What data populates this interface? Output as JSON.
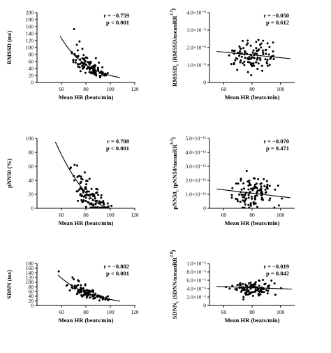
{
  "chart_data": [
    {
      "type": "scatter",
      "id": "p1",
      "xlabel": "Mean HR (beats/min)",
      "ylabel": "RMSSD (ms)",
      "xlim": [
        40,
        120
      ],
      "ylim": [
        0,
        200
      ],
      "xticks": [
        60,
        80,
        100,
        120
      ],
      "yticks": [
        0,
        20,
        40,
        60,
        80,
        100,
        120,
        140,
        160,
        180,
        200
      ],
      "ytick_labels": [
        "0",
        "20",
        "40",
        "60",
        "80",
        "100",
        "120",
        "140",
        "160",
        "180",
        "200"
      ],
      "stat_r": "r = −0.759",
      "stat_p": "p < 0.001",
      "fit": {
        "kind": "exp",
        "a": 2000,
        "b": 0.046,
        "x0": 59,
        "x1": 108
      },
      "npoints": 110,
      "seed": 11,
      "xrange": [
        62,
        104
      ],
      "noise": 0.28
    },
    {
      "type": "scatter",
      "id": "p2",
      "xlabel": "Mean HR (beats/min)",
      "ylabel_main": "RMSSD",
      "ylabel_sub": "c",
      "ylabel_rest": " (RMSSD/meanRR",
      "ylabel_sup": "3.7",
      "ylabel_end": ")",
      "xlim": [
        50,
        110
      ],
      "ylim": [
        0,
        4
      ],
      "xticks": [
        60,
        80,
        100
      ],
      "yticks": [
        0,
        1,
        2,
        3,
        4
      ],
      "ytick_labels": [
        "0",
        "1.0×10⁻⁸",
        "2.0×10⁻⁸",
        "3.0×10⁻⁸",
        "4.0×10⁻⁸"
      ],
      "stat_r": "r = −0.050",
      "stat_p": "p = 0.612",
      "fit": {
        "kind": "lin",
        "m": -0.008,
        "c": 2.22,
        "x0": 55,
        "x1": 107
      },
      "npoints": 110,
      "seed": 23,
      "xrange": [
        60,
        104
      ],
      "yc": 1.45,
      "ysd": 0.38
    },
    {
      "type": "scatter",
      "id": "p3",
      "xlabel": "Mean HR (beats/min)",
      "ylabel": "pNN50 (%)",
      "xlim": [
        40,
        120
      ],
      "ylim": [
        0,
        100
      ],
      "xticks": [
        60,
        80,
        100,
        120
      ],
      "yticks": [
        0,
        20,
        40,
        60,
        80,
        100
      ],
      "ytick_labels": [
        "0",
        "20",
        "40",
        "60",
        "80",
        "100"
      ],
      "stat_r": "r = 0.708",
      "stat_p": "p < 0.001",
      "fit": {
        "kind": "quad",
        "x0": 55,
        "x1": 102
      },
      "npoints": 110,
      "seed": 37,
      "xrange": [
        63,
        104
      ],
      "noise": 11
    },
    {
      "type": "scatter",
      "id": "p4",
      "xlabel": "Mean HR (beats/min)",
      "ylabel_main": "pNN50",
      "ylabel_sub": "c",
      "ylabel_rest": " (pNN50/meanRR",
      "ylabel_sup": "6.3",
      "ylabel_end": ")",
      "xlim": [
        50,
        110
      ],
      "ylim": [
        0,
        5
      ],
      "xticks": [
        60,
        80,
        100
      ],
      "yticks": [
        0,
        1,
        2,
        3,
        4,
        5
      ],
      "ytick_labels": [
        "0",
        "1.0×10⁻¹³",
        "2.0×10⁻¹³",
        "3.0×10⁻¹³",
        "4.0×10⁻¹³",
        "5.0×10⁻¹³"
      ],
      "stat_r": "r = −0.070",
      "stat_p": "p = 0.471",
      "fit": {
        "kind": "lin",
        "m": -0.012,
        "c": 2.04,
        "x0": 55,
        "x1": 107
      },
      "npoints": 110,
      "seed": 51,
      "xrange": [
        60,
        104
      ],
      "yc": 1.05,
      "ysd": 0.55
    },
    {
      "type": "scatter",
      "id": "p5",
      "xlabel": "Mean HR (beats/min)",
      "ylabel": "SDNN (ms)",
      "xlim": [
        40,
        120
      ],
      "ylim": [
        0,
        180
      ],
      "xticks": [
        60,
        80,
        100,
        120
      ],
      "yticks": [
        0,
        20,
        40,
        60,
        80,
        100,
        120,
        140,
        160,
        180
      ],
      "ytick_labels": [
        "0",
        "20",
        "40",
        "60",
        "80",
        "100",
        "120",
        "140",
        "160",
        "180"
      ],
      "stat_r": "r = −0.802",
      "stat_p": "p < 0.001",
      "fit": {
        "kind": "exp",
        "a": 1150,
        "b": 0.038,
        "x0": 57,
        "x1": 108
      },
      "npoints": 110,
      "seed": 67,
      "xrange": [
        62,
        104
      ],
      "noise": 0.22
    },
    {
      "type": "scatter",
      "id": "p6",
      "xlabel": "Mean HR (beats/min)",
      "ylabel_main": "SDNN",
      "ylabel_sub": "c",
      "ylabel_rest": " (SDNN/meanRR",
      "ylabel_sup": "2.8",
      "ylabel_end": ")",
      "xlim": [
        50,
        110
      ],
      "ylim": [
        0,
        10
      ],
      "xticks": [
        60,
        80,
        100
      ],
      "yticks": [
        0,
        2,
        4,
        6,
        8,
        10
      ],
      "ytick_labels": [
        "0",
        "2.0×10⁻⁶",
        "4.0×10⁻⁶",
        "6.0×10⁻⁶",
        "8.0×10⁻⁶",
        "1.0×10⁻⁵"
      ],
      "stat_r": "r = −0.019",
      "stat_p": "p = 0.842",
      "fit": {
        "kind": "lin",
        "m": -0.012,
        "c": 5.2,
        "x0": 55,
        "x1": 108
      },
      "npoints": 110,
      "seed": 79,
      "xrange": [
        60,
        104
      ],
      "yc": 4.1,
      "ysd": 0.85
    }
  ]
}
